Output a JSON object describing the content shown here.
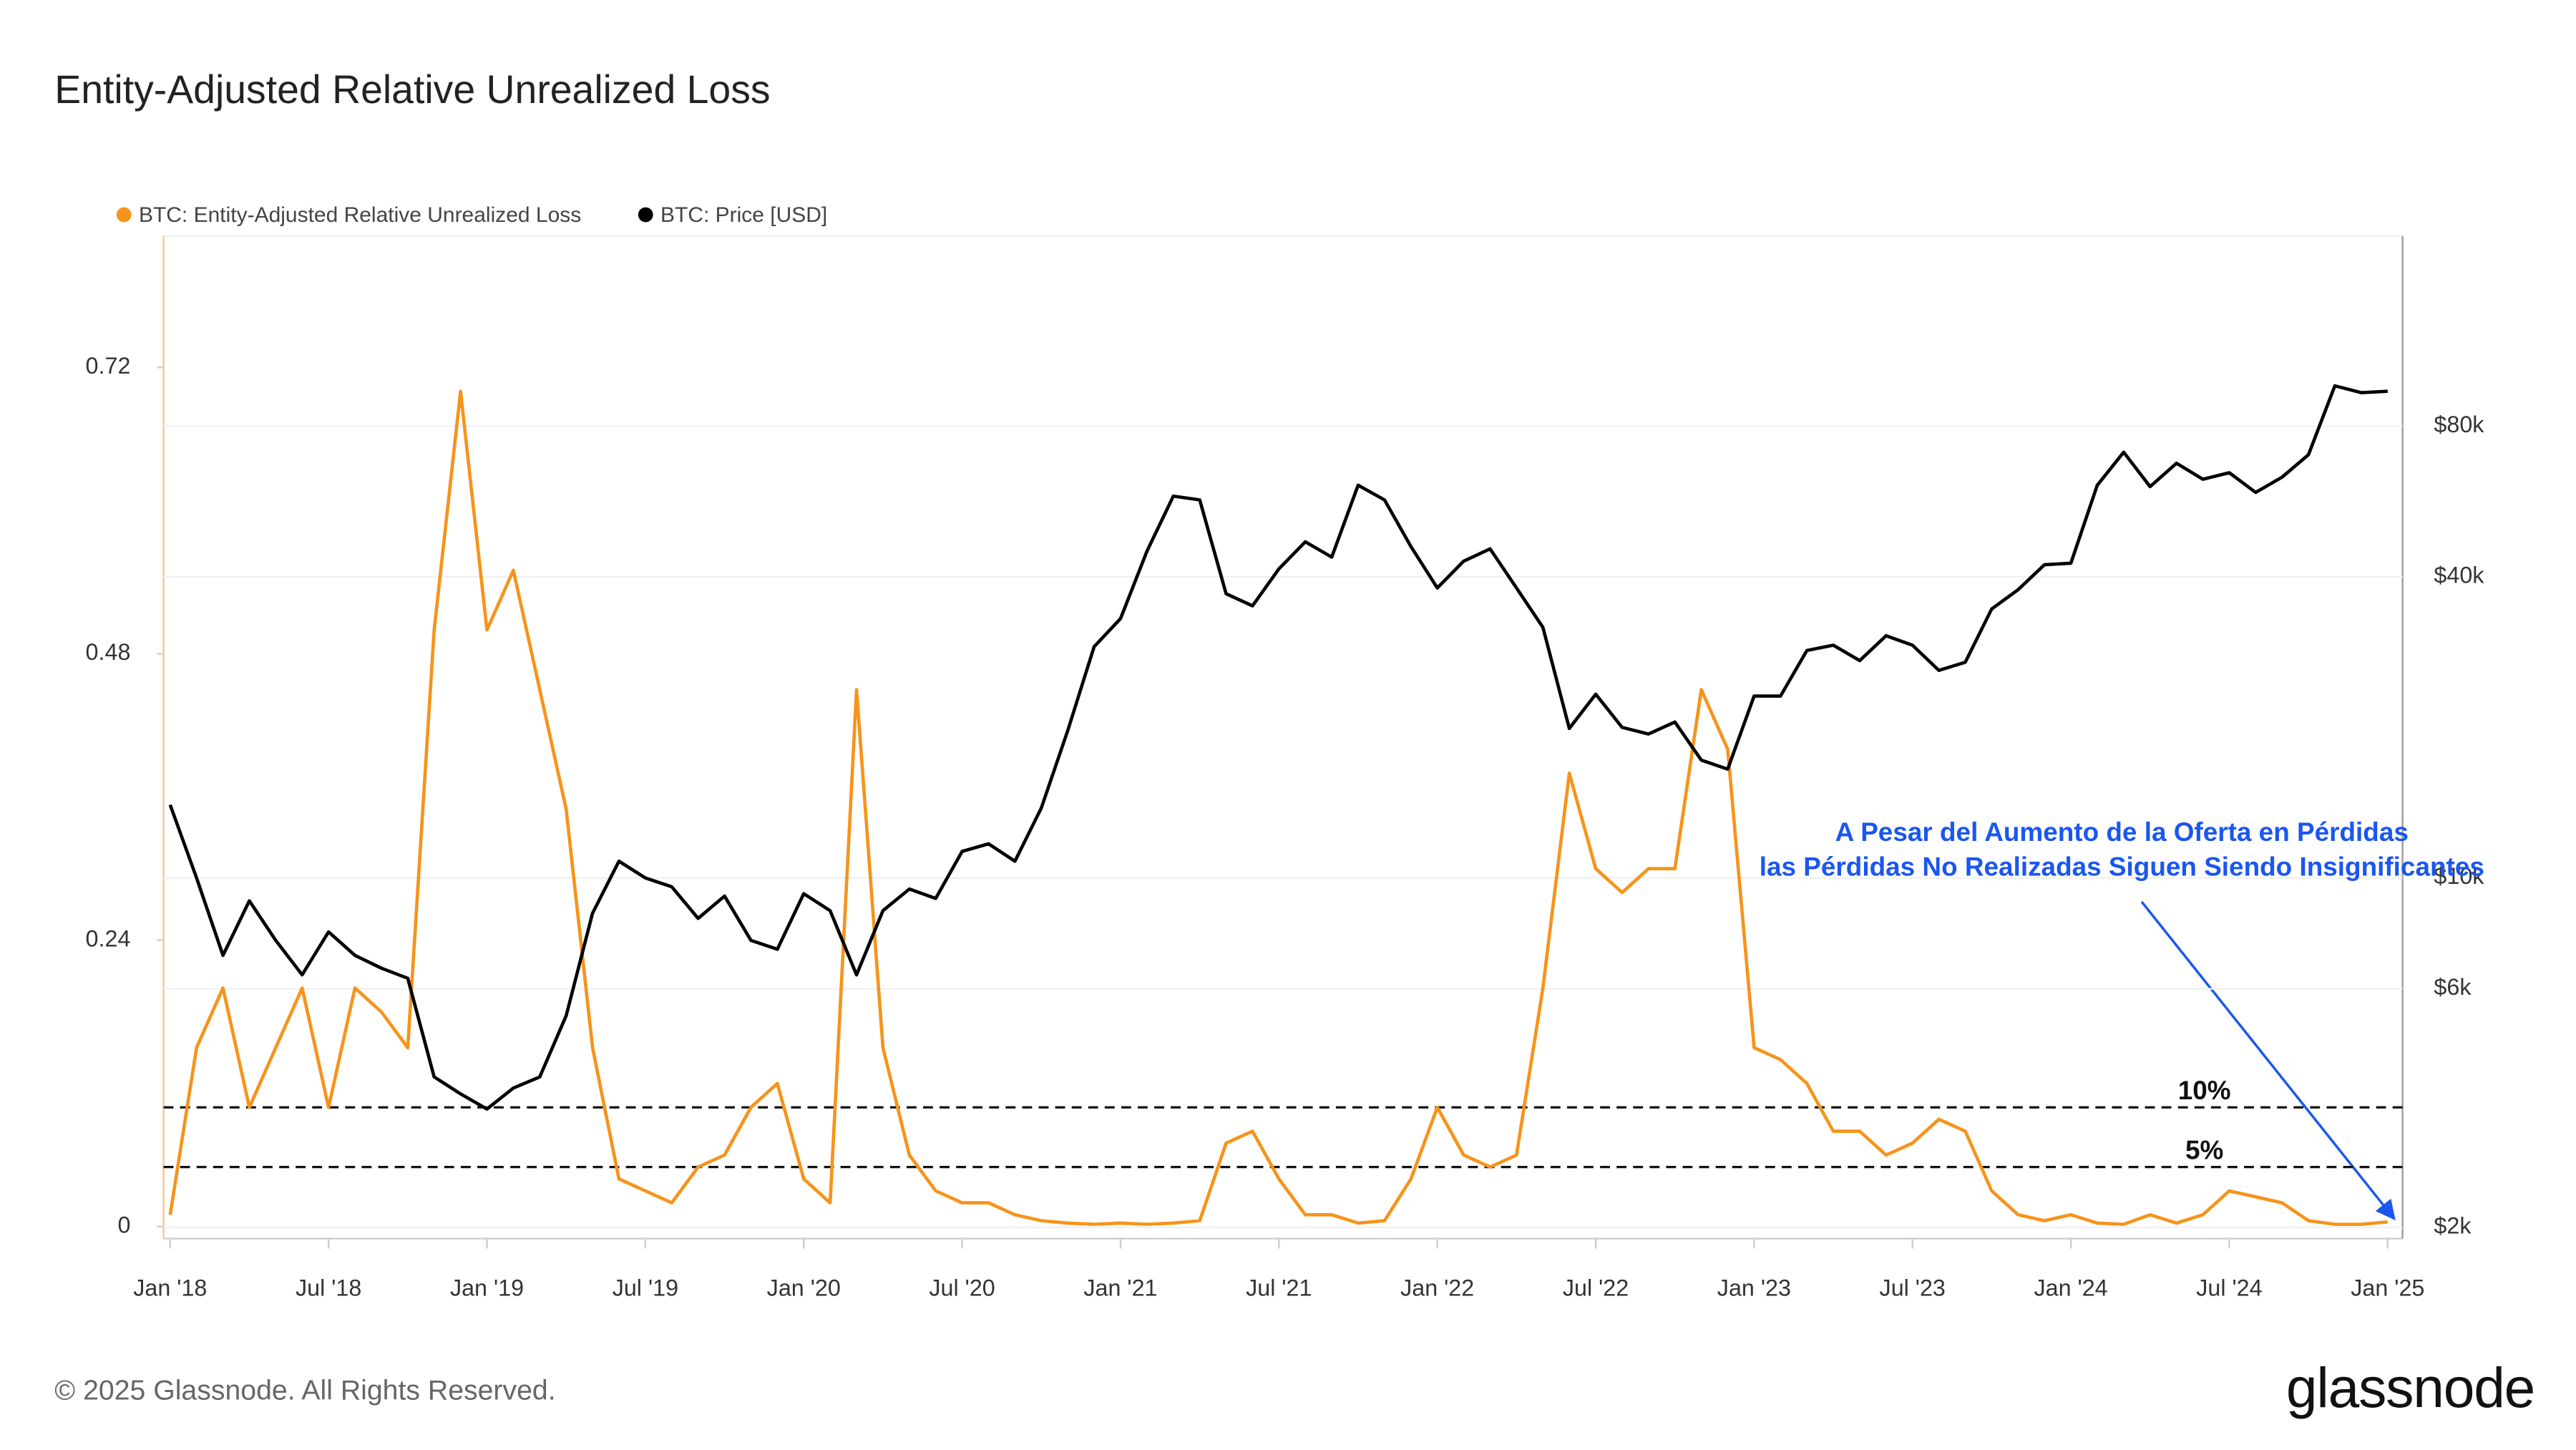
{
  "chart_data": {
    "type": "line",
    "title": "Entity-Adjusted Relative Unrealized Loss",
    "x": [
      "2018-01",
      "2018-02",
      "2018-03",
      "2018-04",
      "2018-05",
      "2018-06",
      "2018-07",
      "2018-08",
      "2018-09",
      "2018-10",
      "2018-11",
      "2018-12",
      "2019-01",
      "2019-02",
      "2019-03",
      "2019-04",
      "2019-05",
      "2019-06",
      "2019-07",
      "2019-08",
      "2019-09",
      "2019-10",
      "2019-11",
      "2019-12",
      "2020-01",
      "2020-02",
      "2020-03",
      "2020-04",
      "2020-05",
      "2020-06",
      "2020-07",
      "2020-08",
      "2020-09",
      "2020-10",
      "2020-11",
      "2020-12",
      "2021-01",
      "2021-02",
      "2021-03",
      "2021-04",
      "2021-05",
      "2021-06",
      "2021-07",
      "2021-08",
      "2021-09",
      "2021-10",
      "2021-11",
      "2021-12",
      "2022-01",
      "2022-02",
      "2022-03",
      "2022-04",
      "2022-05",
      "2022-06",
      "2022-07",
      "2022-08",
      "2022-09",
      "2022-10",
      "2022-11",
      "2022-12",
      "2023-01",
      "2023-02",
      "2023-03",
      "2023-04",
      "2023-05",
      "2023-06",
      "2023-07",
      "2023-08",
      "2023-09",
      "2023-10",
      "2023-11",
      "2023-12",
      "2024-01",
      "2024-02",
      "2024-03",
      "2024-04",
      "2024-05",
      "2024-06",
      "2024-07",
      "2024-08",
      "2024-09",
      "2024-10",
      "2024-11",
      "2024-12",
      "2025-01"
    ],
    "series": [
      {
        "name": "BTC: Entity-Adjusted Relative Unrealized Loss",
        "color": "#f7931a",
        "axis": "y",
        "values": [
          0.01,
          0.15,
          0.2,
          0.1,
          0.15,
          0.2,
          0.1,
          0.2,
          0.18,
          0.15,
          0.5,
          0.7,
          0.5,
          0.55,
          0.45,
          0.35,
          0.15,
          0.04,
          0.03,
          0.02,
          0.05,
          0.06,
          0.1,
          0.12,
          0.04,
          0.02,
          0.45,
          0.15,
          0.06,
          0.03,
          0.02,
          0.02,
          0.01,
          0.005,
          0.003,
          0.002,
          0.003,
          0.002,
          0.003,
          0.005,
          0.07,
          0.08,
          0.04,
          0.01,
          0.01,
          0.003,
          0.005,
          0.04,
          0.1,
          0.06,
          0.05,
          0.06,
          0.2,
          0.38,
          0.3,
          0.28,
          0.3,
          0.3,
          0.45,
          0.4,
          0.15,
          0.14,
          0.12,
          0.08,
          0.08,
          0.06,
          0.07,
          0.09,
          0.08,
          0.03,
          0.01,
          0.005,
          0.01,
          0.003,
          0.002,
          0.01,
          0.003,
          0.01,
          0.03,
          0.025,
          0.02,
          0.005,
          0.002,
          0.002,
          0.004
        ]
      },
      {
        "name": "BTC: Price [USD]",
        "color": "#000000",
        "axis": "y2",
        "values": [
          14000,
          10000,
          7000,
          9000,
          7500,
          6400,
          7800,
          7000,
          6600,
          6300,
          4000,
          3700,
          3450,
          3800,
          4000,
          5300,
          8500,
          10800,
          10000,
          9600,
          8300,
          9200,
          7500,
          7200,
          9300,
          8600,
          6400,
          8600,
          9500,
          9100,
          11300,
          11700,
          10800,
          13800,
          19700,
          29000,
          33000,
          45000,
          58000,
          57000,
          37000,
          35000,
          41500,
          47000,
          43800,
          61000,
          57000,
          46000,
          38000,
          43000,
          45500,
          38000,
          31700,
          19900,
          23300,
          20000,
          19400,
          20500,
          17200,
          16500,
          23100,
          23100,
          28500,
          29200,
          27200,
          30500,
          29200,
          26000,
          27000,
          34500,
          37700,
          42300,
          42600,
          61000,
          71000,
          60600,
          67500,
          62700,
          64600,
          59000,
          63300,
          70200,
          96400,
          93400,
          94000
        ]
      }
    ],
    "xlim": [
      "2018-01",
      "2025-01"
    ],
    "xticks": [
      {
        "value": "2018-01",
        "label": "Jan '18"
      },
      {
        "value": "2018-07",
        "label": "Jul '18"
      },
      {
        "value": "2019-01",
        "label": "Jan '19"
      },
      {
        "value": "2019-07",
        "label": "Jul '19"
      },
      {
        "value": "2020-01",
        "label": "Jan '20"
      },
      {
        "value": "2020-07",
        "label": "Jul '20"
      },
      {
        "value": "2021-01",
        "label": "Jan '21"
      },
      {
        "value": "2021-07",
        "label": "Jul '21"
      },
      {
        "value": "2022-01",
        "label": "Jan '22"
      },
      {
        "value": "2022-07",
        "label": "Jul '22"
      },
      {
        "value": "2023-01",
        "label": "Jan '23"
      },
      {
        "value": "2023-07",
        "label": "Jul '23"
      },
      {
        "value": "2024-01",
        "label": "Jan '24"
      },
      {
        "value": "2024-07",
        "label": "Jul '24"
      },
      {
        "value": "2025-01",
        "label": "Jan '25"
      }
    ],
    "ylim": [
      -0.01,
      0.83
    ],
    "yticks": [
      0,
      0.24,
      0.48,
      0.72
    ],
    "y2lim": [
      1900,
      192000
    ],
    "y2log": true,
    "y2ticks": [
      {
        "value": 2000,
        "label": "$2k"
      },
      {
        "value": 6000,
        "label": "$6k"
      },
      {
        "value": 10000,
        "label": "$10k"
      },
      {
        "value": 40000,
        "label": "$40k"
      },
      {
        "value": 80000,
        "label": "$80k"
      }
    ],
    "grid": true,
    "legend": "top-left",
    "hlines": [
      {
        "value": 0.1,
        "label": "10%"
      },
      {
        "value": 0.05,
        "label": "5%"
      }
    ],
    "annotation": [
      "A Pesar del Aumento de la Oferta en Pérdidas",
      "las Pérdidas No Realizadas Siguen Siendo Insignificantes"
    ],
    "footer": "© 2025 Glassnode. All Rights Reserved.",
    "logo": "glassnode"
  }
}
